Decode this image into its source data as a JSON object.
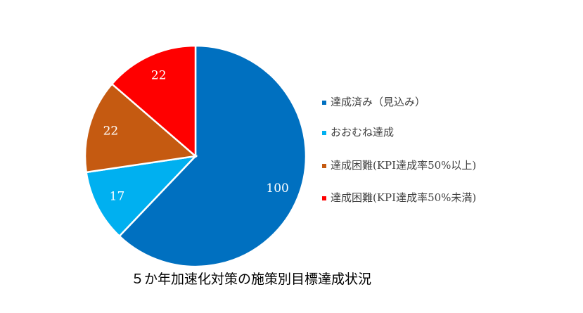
{
  "chart_data": {
    "type": "pie",
    "title": "５か年加速化対策の施策別目標達成状況",
    "categories": [
      "達成済み（見込み）",
      "おおむね達成",
      "達成困難(KPI達成率50%以上)",
      "達成困難(KPI達成率50%未満)"
    ],
    "values": [
      100,
      17,
      22,
      22
    ],
    "colors": [
      "#0070c0",
      "#00b0f0",
      "#c55a11",
      "#ff0000"
    ],
    "legend": "right"
  }
}
